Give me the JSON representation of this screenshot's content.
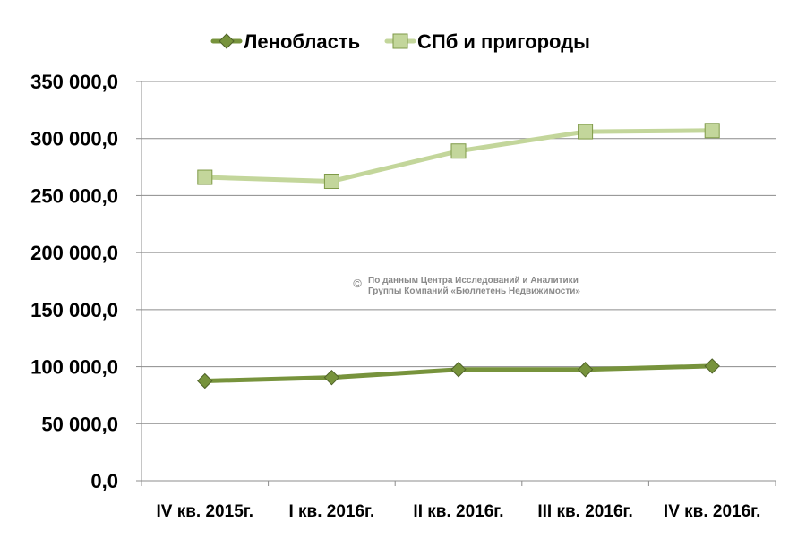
{
  "chart_data": {
    "type": "line",
    "categories": [
      "IV кв. 2015г.",
      "I кв. 2016г.",
      "II кв. 2016г.",
      "III кв. 2016г.",
      "IV кв. 2016г."
    ],
    "series": [
      {
        "name": "Ленобласть",
        "marker": "diamond",
        "color": "#77933c",
        "values": [
          87500,
          90500,
          97500,
          97500,
          100500
        ]
      },
      {
        "name": "СПб и пригороды",
        "marker": "square",
        "color": "#c3d69b",
        "values": [
          266000,
          262500,
          289000,
          306000,
          307000
        ]
      }
    ],
    "ylim": [
      0,
      350000
    ],
    "yticks": [
      0,
      50000,
      100000,
      150000,
      200000,
      250000,
      300000,
      350000
    ],
    "ytick_labels": [
      "0,0",
      "50 000,0",
      "100 000,0",
      "150 000,0",
      "200 000,0",
      "250 000,0",
      "300 000,0",
      "350 000,0"
    ],
    "grid": true,
    "legend_position": "top-center",
    "annotation": {
      "symbol": "©",
      "line1": "По данным Центра Исследований и Аналитики",
      "line2": "Группы Компаний «Бюллетень Недвижимости»"
    }
  }
}
